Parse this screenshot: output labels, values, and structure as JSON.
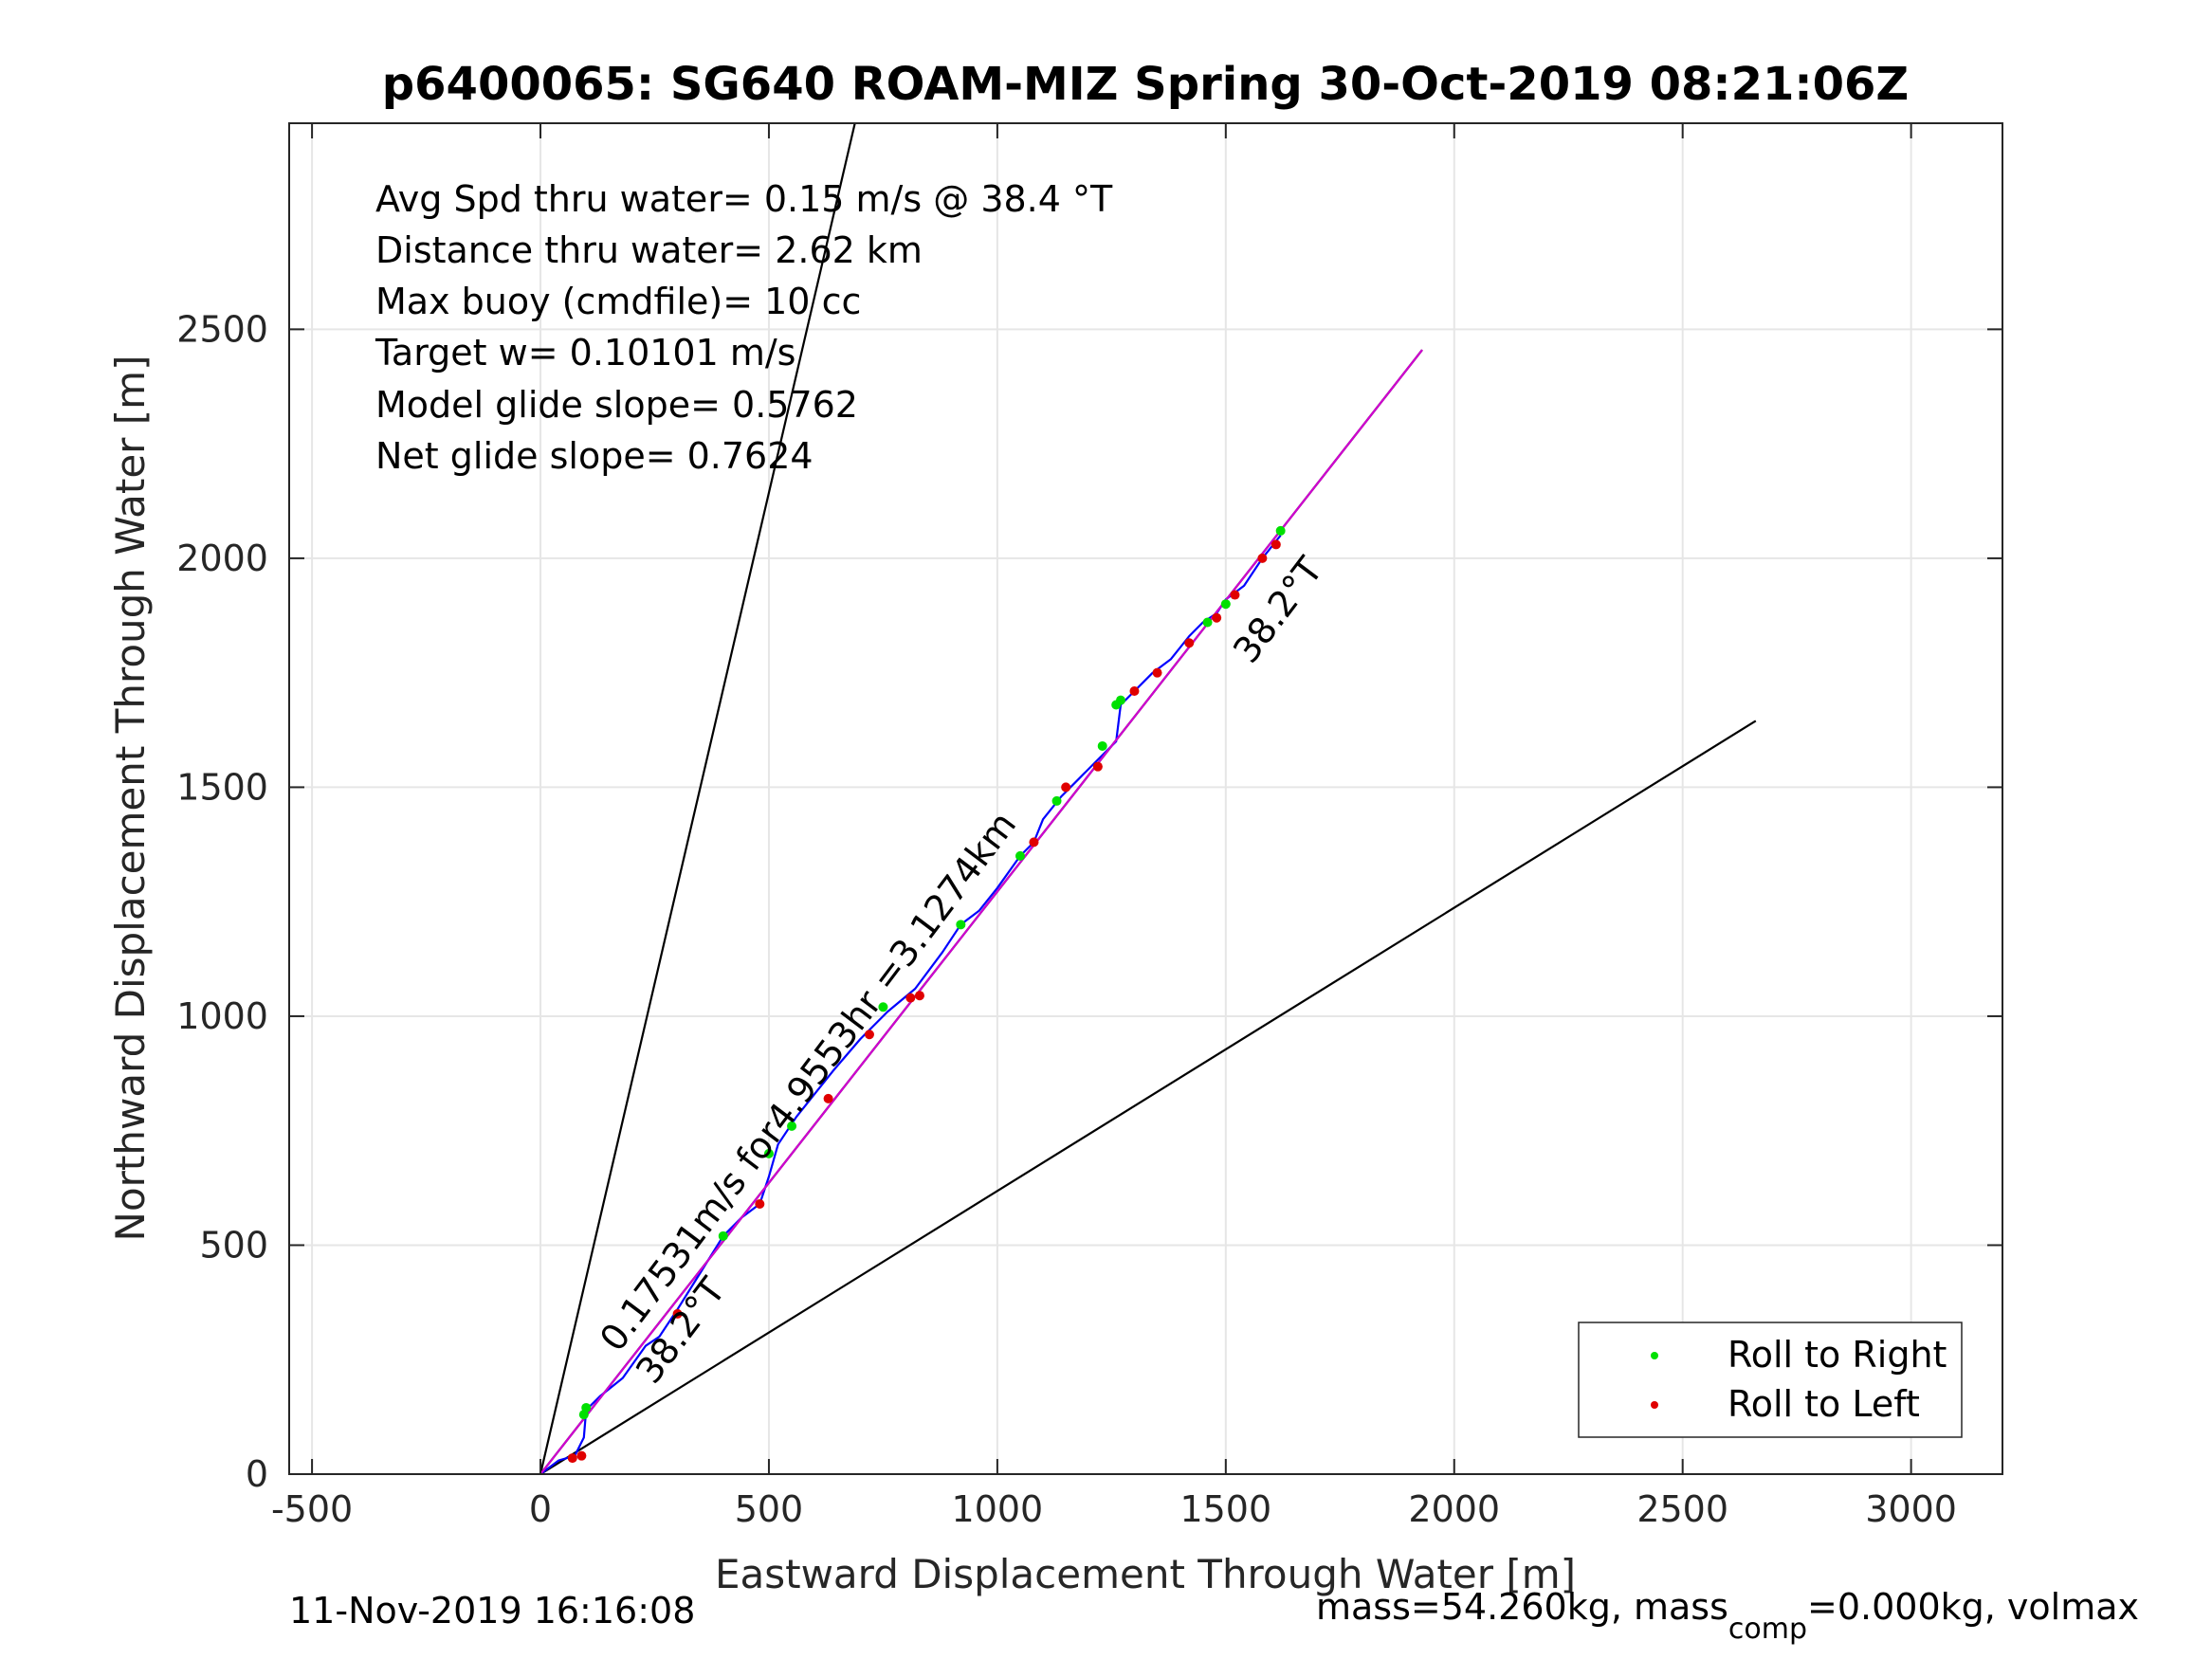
{
  "chart_data": {
    "type": "line",
    "title": "p6400065: SG640 ROAM-MIZ Spring 30-Oct-2019 08:21:06Z",
    "xlabel": "Eastward Displacement Through Water [m]",
    "ylabel": "Northward Displacement Through Water [m]",
    "xlim": [
      -550,
      3200
    ],
    "ylim": [
      0,
      2950
    ],
    "xticks": [
      -500,
      0,
      500,
      1000,
      1500,
      2000,
      2500,
      3000
    ],
    "yticks": [
      0,
      500,
      1000,
      1500,
      2000,
      2500
    ],
    "xtick_labels": [
      "-500",
      "0",
      "500",
      "1000",
      "1500",
      "2000",
      "2500",
      "3000"
    ],
    "ytick_labels": [
      "0",
      "500",
      "1000",
      "1500",
      "2000",
      "2500"
    ],
    "grid": true,
    "legend_position": "bottom-right",
    "info_lines": [
      "Avg Spd thru water=  0.15 m/s @  38.4 °T",
      "Distance thru water=  2.62 km",
      "Max buoy (cmdfile)= 10 cc",
      "Target w= 0.10101 m/s",
      "Model glide slope= 0.5762",
      "Net glide slope= 0.7624"
    ],
    "track_annotation": "0.17531m/s for4.9553hr =3.1274km",
    "heading_label_start": "38.2°T",
    "heading_label_end": "38.2°T",
    "series": [
      {
        "name": "",
        "style": "line",
        "color": "#0000ff",
        "x": [
          0,
          40,
          75,
          95,
          100,
          130,
          180,
          230,
          260,
          300,
          350,
          400,
          440,
          480,
          500,
          520,
          560,
          600,
          640,
          700,
          760,
          820,
          880,
          920,
          960,
          1000,
          1050,
          1080,
          1100,
          1140,
          1180,
          1220,
          1260,
          1270,
          1300,
          1340,
          1380,
          1420,
          1450,
          1480,
          1500,
          1540,
          1580,
          1620
        ],
        "y": [
          0,
          30,
          40,
          80,
          140,
          170,
          210,
          280,
          300,
          360,
          440,
          520,
          560,
          590,
          650,
          720,
          780,
          830,
          880,
          950,
          1010,
          1060,
          1140,
          1200,
          1230,
          1280,
          1350,
          1380,
          1430,
          1480,
          1520,
          1560,
          1600,
          1680,
          1710,
          1750,
          1780,
          1830,
          1860,
          1880,
          1910,
          1940,
          2000,
          2050
        ]
      },
      {
        "name": "",
        "style": "line",
        "color": "#d000d0",
        "x": [
          0,
          1930
        ],
        "y": [
          0,
          2455
        ]
      },
      {
        "name": "",
        "style": "line",
        "color": "#000000",
        "x": [
          0,
          700
        ],
        "y": [
          0,
          3000
        ]
      },
      {
        "name": "",
        "style": "line",
        "color": "#000000",
        "x": [
          0,
          2660
        ],
        "y": [
          0,
          1645
        ]
      },
      {
        "name": "",
        "style": "line",
        "color": "#000000",
        "x": [
          0,
          1930
        ],
        "y": [
          0,
          2455
        ]
      },
      {
        "name": "Roll to Right",
        "style": "marker",
        "color": "#00e000",
        "x": [
          95,
          100,
          400,
          500,
          550,
          750,
          920,
          1050,
          1130,
          1230,
          1260,
          1270,
          1460,
          1500,
          1620
        ],
        "y": [
          130,
          145,
          520,
          700,
          760,
          1020,
          1200,
          1350,
          1470,
          1590,
          1680,
          1690,
          1860,
          1900,
          2060
        ]
      },
      {
        "name": "Roll to Left",
        "style": "marker",
        "color": "#e00000",
        "x": [
          70,
          90,
          300,
          480,
          630,
          720,
          810,
          830,
          1080,
          1150,
          1220,
          1300,
          1350,
          1420,
          1480,
          1520,
          1580,
          1610
        ],
        "y": [
          35,
          40,
          350,
          590,
          820,
          960,
          1040,
          1045,
          1380,
          1500,
          1545,
          1710,
          1750,
          1815,
          1870,
          1920,
          2000,
          2030
        ]
      }
    ]
  },
  "footer": {
    "timestamp": "11-Nov-2019 16:16:08",
    "mass_prefix": "mass=54.260kg, mass",
    "mass_sub": "comp",
    "mass_suffix": "=0.000kg, volmax"
  },
  "colors": {
    "grid": "#e6e6e6",
    "axes": "#262626",
    "track": "#0000ff",
    "fit_line": "#d000d0",
    "roll_right": "#00e000",
    "roll_left": "#e00000"
  }
}
